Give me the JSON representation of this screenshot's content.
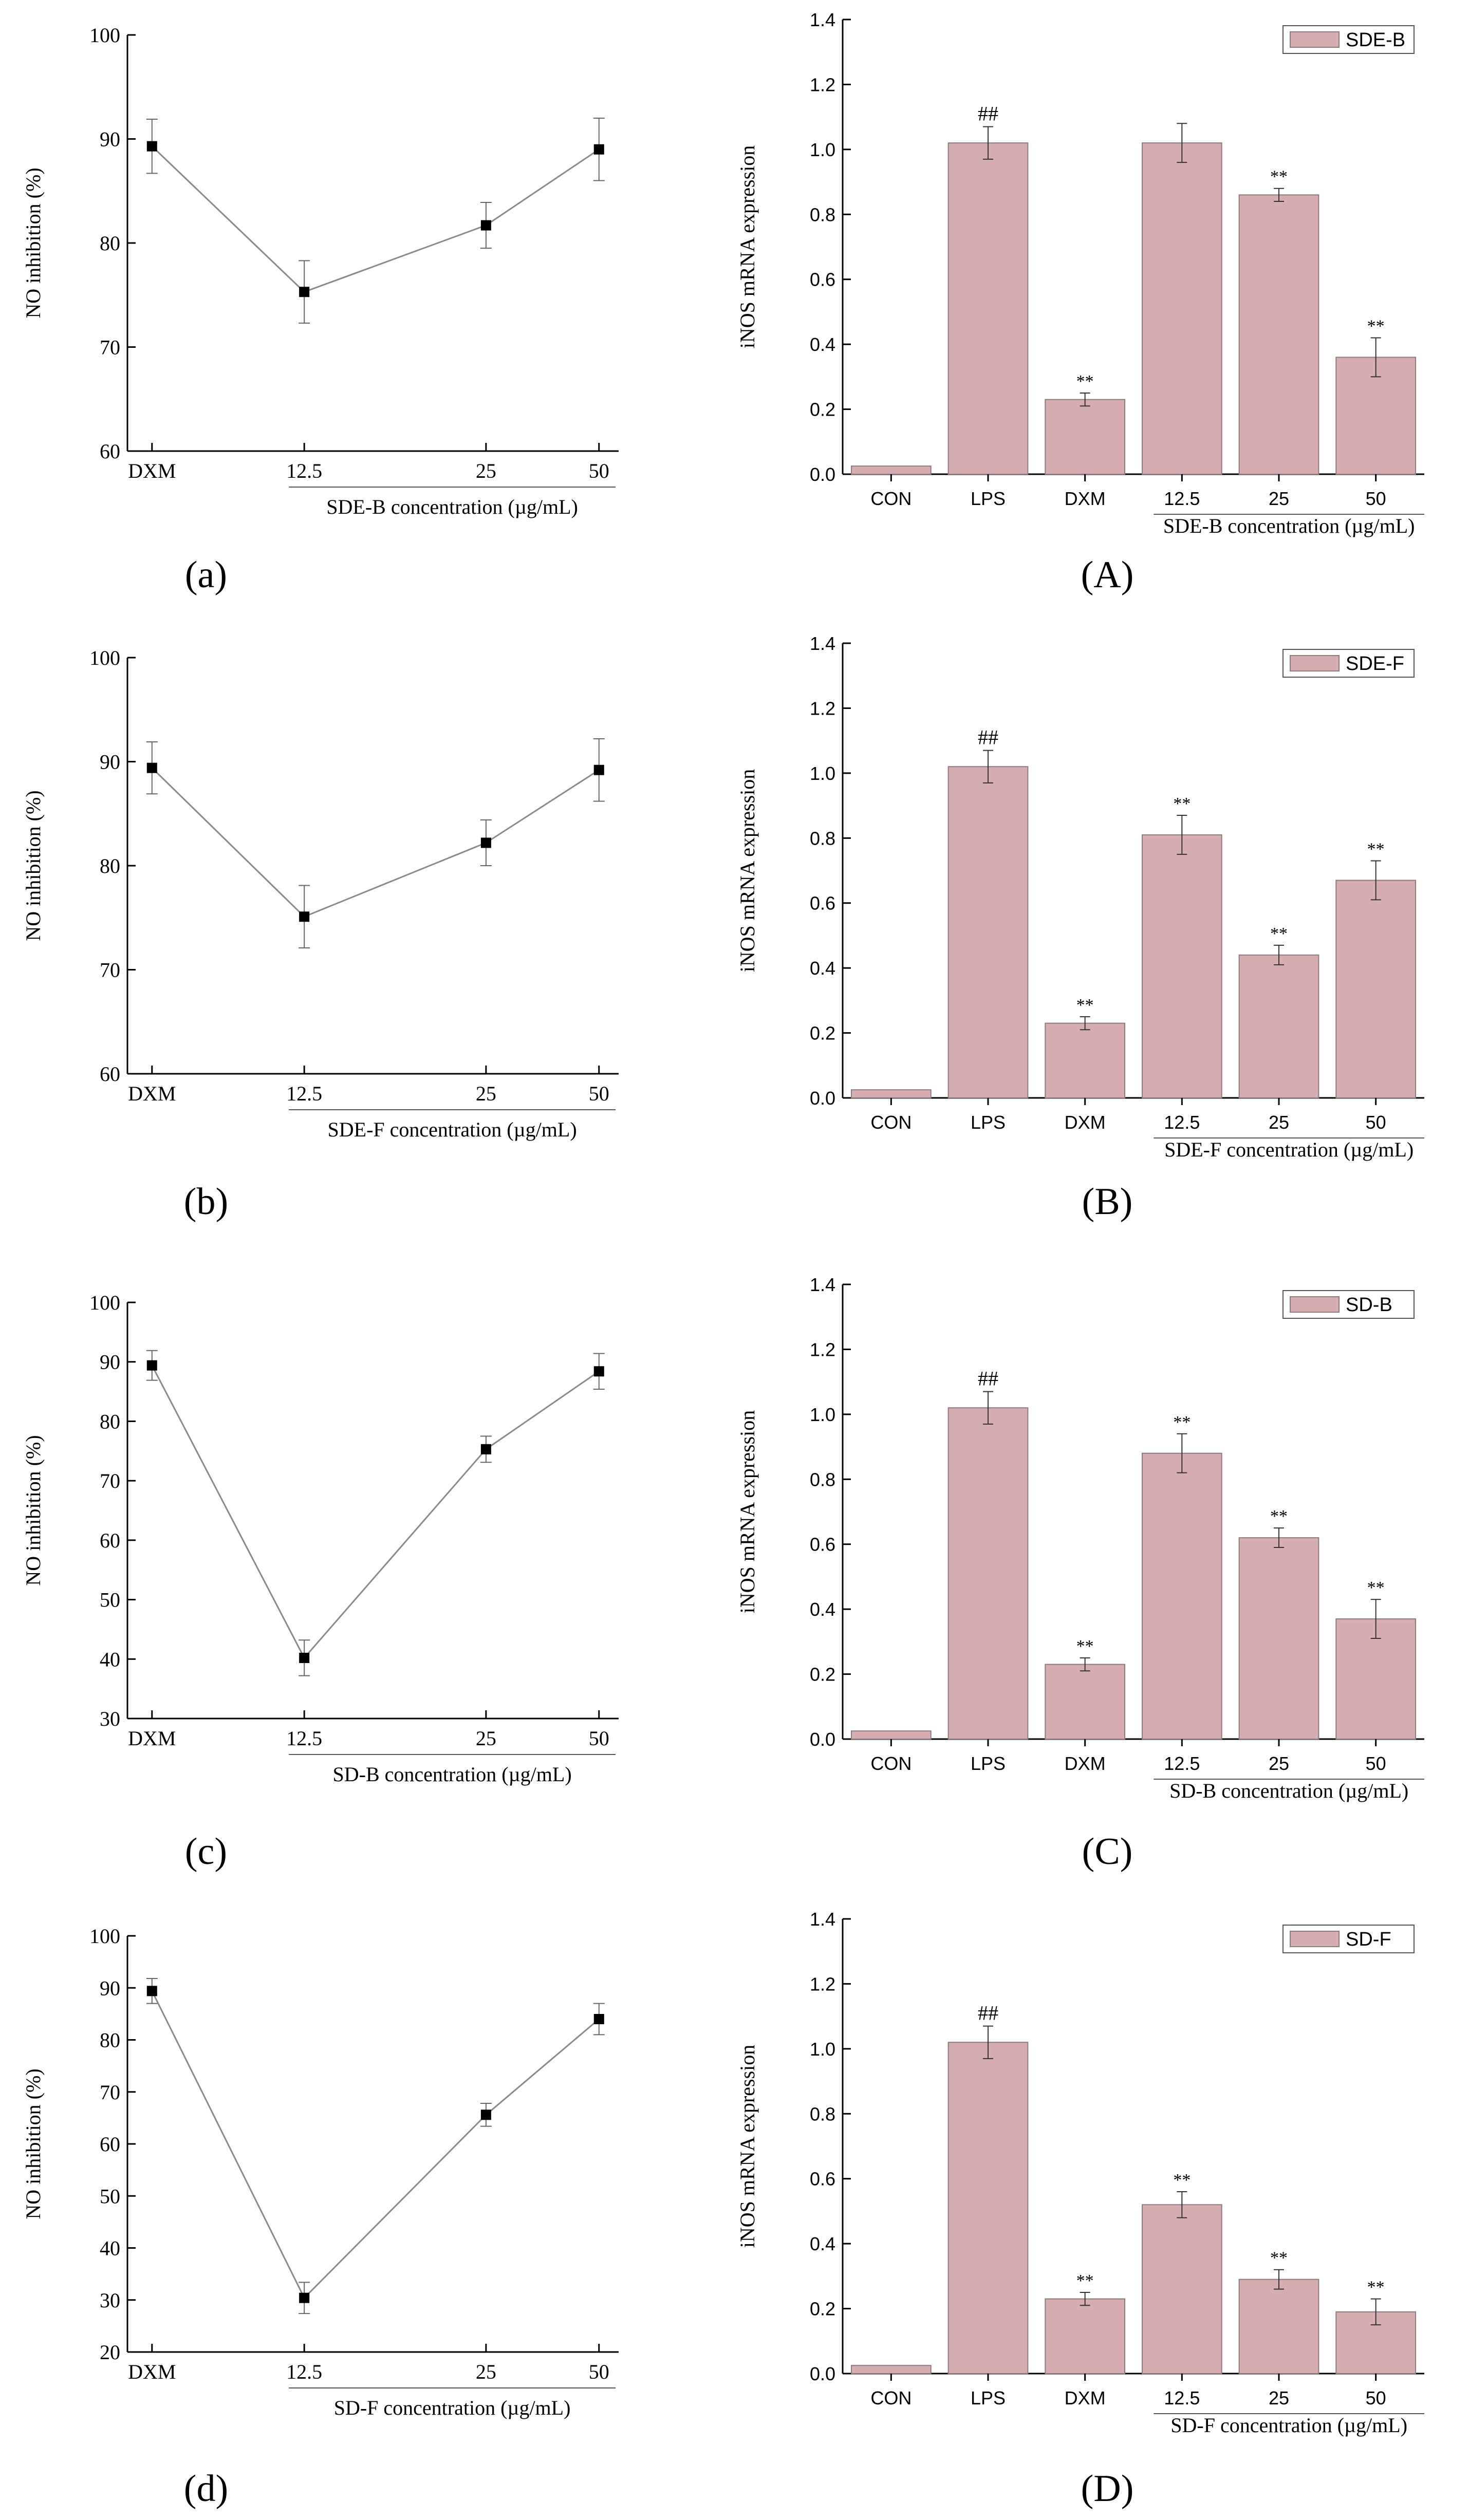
{
  "colors": {
    "bar_fill": "#d6aeb1",
    "bar_stroke": "#8f7a7c",
    "line": "#8a8a8a",
    "marker": "#000000",
    "axis": "#000000"
  },
  "chart_data": [
    {
      "id": "a",
      "panel_label": "(a)",
      "type": "line",
      "categories": [
        "DXM",
        "12.5",
        "25",
        "50"
      ],
      "values": [
        89.3,
        75.3,
        81.7,
        89.0
      ],
      "errors": [
        2.6,
        3.0,
        2.2,
        3.0
      ],
      "ylim": [
        60,
        100
      ],
      "yticks": [
        "60",
        "70",
        "80",
        "90",
        "100"
      ],
      "ylabel": "NO inhibition (%)",
      "xlabel": "SDE-B concentration (µg/mL)"
    },
    {
      "id": "A",
      "panel_label": "(A)",
      "type": "bar",
      "categories": [
        "CON",
        "LPS",
        "DXM",
        "12.5",
        "25",
        "50"
      ],
      "values": [
        0.025,
        1.02,
        0.23,
        1.02,
        0.86,
        0.36
      ],
      "errors": [
        0.0,
        0.05,
        0.02,
        0.06,
        0.02,
        0.06
      ],
      "annotations": [
        "",
        "##",
        "**",
        "",
        "**",
        "**"
      ],
      "ylim": [
        0,
        1.4
      ],
      "yticks": [
        "0.0",
        "0.2",
        "0.4",
        "0.6",
        "0.8",
        "1.0",
        "1.2",
        "1.4"
      ],
      "ylabel": "iNOS mRNA expression",
      "xlabel": "SDE-B concentration (µg/mL)",
      "legend": "SDE-B",
      "legend_position": "top-right"
    },
    {
      "id": "b",
      "panel_label": "(b)",
      "type": "line",
      "categories": [
        "DXM",
        "12.5",
        "25",
        "50"
      ],
      "values": [
        89.4,
        75.1,
        82.2,
        89.2
      ],
      "errors": [
        2.5,
        3.0,
        2.2,
        3.0
      ],
      "ylim": [
        60,
        100
      ],
      "yticks": [
        "60",
        "70",
        "80",
        "90",
        "100"
      ],
      "ylabel": "NO inhibition (%)",
      "xlabel": "SDE-F concentration (µg/mL)"
    },
    {
      "id": "B",
      "panel_label": "(B)",
      "type": "bar",
      "categories": [
        "CON",
        "LPS",
        "DXM",
        "12.5",
        "25",
        "50"
      ],
      "values": [
        0.025,
        1.02,
        0.23,
        0.81,
        0.44,
        0.67
      ],
      "errors": [
        0.0,
        0.05,
        0.02,
        0.06,
        0.03,
        0.06
      ],
      "annotations": [
        "",
        "##",
        "**",
        "**",
        "**",
        "**"
      ],
      "ylim": [
        0,
        1.4
      ],
      "yticks": [
        "0.0",
        "0.2",
        "0.4",
        "0.6",
        "0.8",
        "1.0",
        "1.2",
        "1.4"
      ],
      "ylabel": "iNOS mRNA expression",
      "xlabel": "SDE-F concentration (µg/mL)",
      "legend": "SDE-F",
      "legend_position": "top-right"
    },
    {
      "id": "c",
      "panel_label": "(c)",
      "type": "line",
      "categories": [
        "DXM",
        "12.5",
        "25",
        "50"
      ],
      "values": [
        89.4,
        40.2,
        75.3,
        88.4
      ],
      "errors": [
        2.5,
        3.0,
        2.2,
        3.0
      ],
      "ylim": [
        30,
        100
      ],
      "yticks": [
        "30",
        "40",
        "50",
        "60",
        "70",
        "80",
        "90",
        "100"
      ],
      "ylabel": "NO inhibition (%)",
      "xlabel": "SD-B concentration (µg/mL)"
    },
    {
      "id": "C",
      "panel_label": "(C)",
      "type": "bar",
      "categories": [
        "CON",
        "LPS",
        "DXM",
        "12.5",
        "25",
        "50"
      ],
      "values": [
        0.025,
        1.02,
        0.23,
        0.88,
        0.62,
        0.37
      ],
      "errors": [
        0.0,
        0.05,
        0.02,
        0.06,
        0.03,
        0.06
      ],
      "annotations": [
        "",
        "##",
        "**",
        "**",
        "**",
        "**"
      ],
      "ylim": [
        0,
        1.4
      ],
      "yticks": [
        "0.0",
        "0.2",
        "0.4",
        "0.6",
        "0.8",
        "1.0",
        "1.2",
        "1.4"
      ],
      "ylabel": "iNOS mRNA expression",
      "xlabel": "SD-B concentration (µg/mL)",
      "legend": "SD-B",
      "legend_position": "top-right"
    },
    {
      "id": "d",
      "panel_label": "(d)",
      "type": "line",
      "categories": [
        "DXM",
        "12.5",
        "25",
        "50"
      ],
      "values": [
        89.4,
        30.4,
        65.6,
        84.0
      ],
      "errors": [
        2.4,
        3.0,
        2.2,
        3.0
      ],
      "ylim": [
        20,
        100
      ],
      "yticks": [
        "20",
        "30",
        "40",
        "50",
        "60",
        "70",
        "80",
        "90",
        "100"
      ],
      "ylabel": "NO inhibition (%)",
      "xlabel": "SD-F concentration (µg/mL)"
    },
    {
      "id": "D",
      "panel_label": "(D)",
      "type": "bar",
      "categories": [
        "CON",
        "LPS",
        "DXM",
        "12.5",
        "25",
        "50"
      ],
      "values": [
        0.025,
        1.02,
        0.23,
        0.52,
        0.29,
        0.19
      ],
      "errors": [
        0.0,
        0.05,
        0.02,
        0.04,
        0.03,
        0.04
      ],
      "annotations": [
        "",
        "##",
        "**",
        "**",
        "**",
        "**"
      ],
      "ylim": [
        0,
        1.4
      ],
      "yticks": [
        "0.0",
        "0.2",
        "0.4",
        "0.6",
        "0.8",
        "1.0",
        "1.2",
        "1.4"
      ],
      "ylabel": "iNOS mRNA expression",
      "xlabel": "SD-F concentration (µg/mL)",
      "legend": "SD-F",
      "legend_position": "top-right"
    }
  ]
}
